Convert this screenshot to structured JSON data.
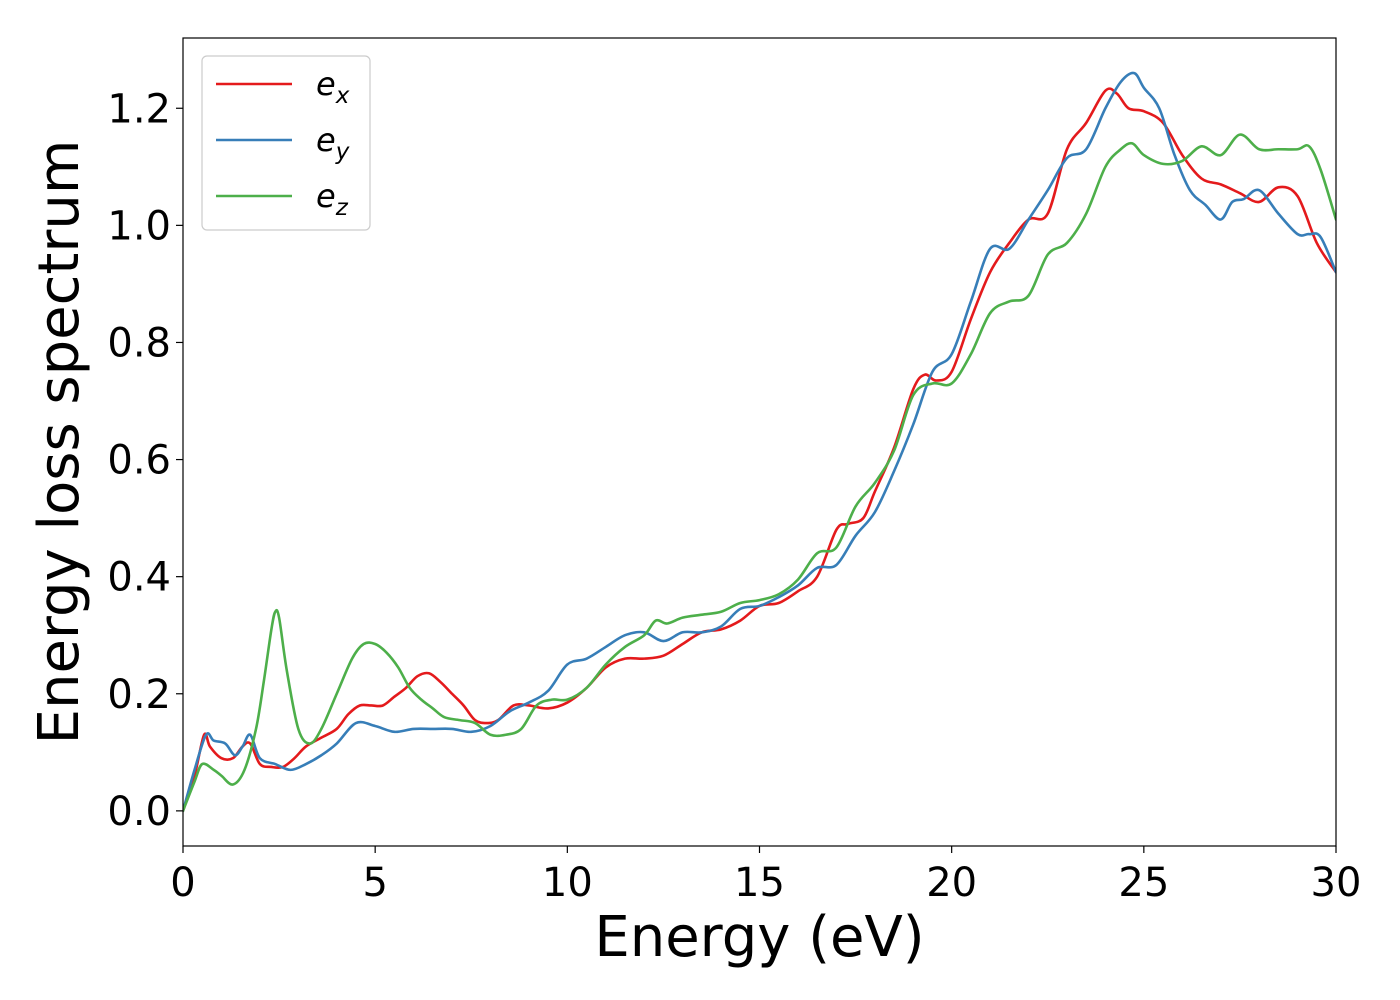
{
  "chart_data": {
    "type": "line",
    "title": "",
    "xlabel": "Energy (eV)",
    "ylabel": "Energy loss spectrum",
    "xlim": [
      0,
      30
    ],
    "ylim": [
      -0.06,
      1.32
    ],
    "xticks": [
      0,
      5,
      10,
      15,
      20,
      25,
      30
    ],
    "xtick_labels": [
      "0",
      "5",
      "10",
      "15",
      "20",
      "25",
      "30"
    ],
    "yticks": [
      0.0,
      0.2,
      0.4,
      0.6,
      0.8,
      1.0,
      1.2
    ],
    "ytick_labels": [
      "0.0",
      "0.2",
      "0.4",
      "0.6",
      "0.8",
      "1.0",
      "1.2"
    ],
    "grid": false,
    "legend_position": "top-left",
    "series": [
      {
        "name": "e",
        "subscript": "x",
        "color": "#e41a1c",
        "x": [
          0,
          0.3,
          0.55,
          0.7,
          1.0,
          1.3,
          1.55,
          1.75,
          2.0,
          2.3,
          2.6,
          2.9,
          3.2,
          3.6,
          4.0,
          4.3,
          4.6,
          4.9,
          5.2,
          5.5,
          5.8,
          6.1,
          6.4,
          6.7,
          7.0,
          7.3,
          7.6,
          7.9,
          8.2,
          8.6,
          9.0,
          9.5,
          10.0,
          10.5,
          11.0,
          11.5,
          12.0,
          12.5,
          13.0,
          13.5,
          14.0,
          14.5,
          15.0,
          15.5,
          16.0,
          16.5,
          17.0,
          17.3,
          17.7,
          18.0,
          18.5,
          19.0,
          19.3,
          19.6,
          20.0,
          20.5,
          21.0,
          21.5,
          22.0,
          22.5,
          23.0,
          23.5,
          24.0,
          24.3,
          24.6,
          25.0,
          25.5,
          26.0,
          26.5,
          27.0,
          27.5,
          28.0,
          28.5,
          29.0,
          29.5,
          30.0
        ],
        "values": [
          0.0,
          0.06,
          0.13,
          0.11,
          0.09,
          0.09,
          0.11,
          0.115,
          0.08,
          0.075,
          0.075,
          0.09,
          0.11,
          0.125,
          0.14,
          0.165,
          0.18,
          0.18,
          0.18,
          0.195,
          0.21,
          0.23,
          0.235,
          0.22,
          0.2,
          0.18,
          0.155,
          0.15,
          0.155,
          0.18,
          0.18,
          0.175,
          0.185,
          0.21,
          0.245,
          0.26,
          0.26,
          0.265,
          0.285,
          0.305,
          0.31,
          0.325,
          0.35,
          0.355,
          0.375,
          0.4,
          0.48,
          0.49,
          0.5,
          0.545,
          0.62,
          0.72,
          0.745,
          0.735,
          0.75,
          0.84,
          0.92,
          0.97,
          1.01,
          1.02,
          1.13,
          1.175,
          1.23,
          1.225,
          1.2,
          1.195,
          1.175,
          1.12,
          1.08,
          1.07,
          1.055,
          1.04,
          1.065,
          1.05,
          0.97,
          0.92
        ]
      },
      {
        "name": "e",
        "subscript": "y",
        "color": "#377eb8",
        "x": [
          0,
          0.3,
          0.6,
          0.8,
          1.1,
          1.35,
          1.55,
          1.75,
          2.0,
          2.4,
          2.8,
          3.2,
          3.6,
          4.0,
          4.5,
          5.0,
          5.5,
          6.0,
          6.5,
          7.0,
          7.5,
          8.0,
          8.5,
          9.0,
          9.5,
          10.0,
          10.5,
          11.0,
          11.5,
          12.0,
          12.5,
          13.0,
          13.5,
          14.0,
          14.5,
          15.0,
          15.5,
          16.0,
          16.5,
          17.0,
          17.5,
          18.0,
          18.5,
          19.0,
          19.5,
          20.0,
          20.5,
          21.0,
          21.5,
          22.0,
          22.5,
          23.0,
          23.5,
          24.0,
          24.4,
          24.75,
          25.0,
          25.4,
          25.8,
          26.2,
          26.6,
          27.0,
          27.3,
          27.6,
          28.0,
          28.5,
          29.0,
          29.3,
          29.6,
          30.0
        ],
        "values": [
          0.0,
          0.07,
          0.13,
          0.12,
          0.115,
          0.095,
          0.11,
          0.13,
          0.09,
          0.08,
          0.07,
          0.08,
          0.095,
          0.115,
          0.15,
          0.145,
          0.135,
          0.14,
          0.14,
          0.14,
          0.135,
          0.145,
          0.17,
          0.185,
          0.205,
          0.25,
          0.26,
          0.28,
          0.3,
          0.305,
          0.29,
          0.305,
          0.305,
          0.315,
          0.345,
          0.35,
          0.365,
          0.385,
          0.415,
          0.42,
          0.47,
          0.51,
          0.58,
          0.66,
          0.75,
          0.78,
          0.87,
          0.96,
          0.96,
          1.01,
          1.06,
          1.115,
          1.13,
          1.2,
          1.245,
          1.26,
          1.235,
          1.2,
          1.12,
          1.06,
          1.035,
          1.01,
          1.04,
          1.045,
          1.06,
          1.02,
          0.985,
          0.985,
          0.98,
          0.92
        ]
      },
      {
        "name": "e",
        "subscript": "z",
        "color": "#4daf4a",
        "x": [
          0,
          0.3,
          0.5,
          0.8,
          1.0,
          1.3,
          1.6,
          1.9,
          2.1,
          2.3,
          2.4,
          2.5,
          2.7,
          3.0,
          3.3,
          3.6,
          4.0,
          4.4,
          4.7,
          5.0,
          5.3,
          5.6,
          5.9,
          6.2,
          6.5,
          6.8,
          7.2,
          7.6,
          8.0,
          8.4,
          8.8,
          9.2,
          9.6,
          10.0,
          10.5,
          11.0,
          11.5,
          12.0,
          12.3,
          12.6,
          13.0,
          13.5,
          14.0,
          14.5,
          15.0,
          15.5,
          16.0,
          16.5,
          17.0,
          17.5,
          18.0,
          18.5,
          19.0,
          19.5,
          20.0,
          20.5,
          21.0,
          21.5,
          22.0,
          22.5,
          23.0,
          23.5,
          24.0,
          24.4,
          24.7,
          25.0,
          25.5,
          26.0,
          26.5,
          27.0,
          27.5,
          28.0,
          28.5,
          29.0,
          29.3,
          29.6,
          30.0
        ],
        "values": [
          0.0,
          0.05,
          0.08,
          0.07,
          0.06,
          0.045,
          0.07,
          0.14,
          0.22,
          0.31,
          0.34,
          0.33,
          0.24,
          0.14,
          0.115,
          0.14,
          0.2,
          0.26,
          0.285,
          0.285,
          0.27,
          0.245,
          0.21,
          0.19,
          0.175,
          0.16,
          0.155,
          0.15,
          0.13,
          0.13,
          0.14,
          0.18,
          0.19,
          0.19,
          0.21,
          0.25,
          0.28,
          0.3,
          0.325,
          0.32,
          0.33,
          0.335,
          0.34,
          0.355,
          0.36,
          0.37,
          0.395,
          0.44,
          0.45,
          0.52,
          0.56,
          0.615,
          0.71,
          0.73,
          0.73,
          0.78,
          0.85,
          0.87,
          0.88,
          0.95,
          0.97,
          1.02,
          1.1,
          1.13,
          1.14,
          1.12,
          1.105,
          1.11,
          1.135,
          1.12,
          1.155,
          1.13,
          1.13,
          1.13,
          1.135,
          1.095,
          1.01
        ]
      }
    ]
  }
}
